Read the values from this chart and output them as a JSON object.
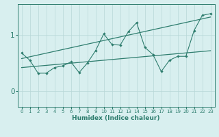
{
  "xlabel": "Humidex (Indice chaleur)",
  "x": [
    0,
    1,
    2,
    3,
    4,
    5,
    6,
    7,
    8,
    9,
    10,
    11,
    12,
    13,
    14,
    15,
    16,
    17,
    18,
    19,
    20,
    21,
    22,
    23
  ],
  "scatter_y": [
    0.68,
    0.55,
    0.32,
    0.32,
    0.42,
    0.45,
    0.52,
    0.33,
    0.5,
    0.72,
    1.02,
    0.83,
    0.82,
    1.06,
    1.22,
    0.78,
    0.65,
    0.35,
    0.55,
    0.62,
    0.62,
    1.08,
    1.35,
    1.38
  ],
  "trend1_x": [
    0,
    23
  ],
  "trend1_y": [
    0.42,
    0.72
  ],
  "trend2_x": [
    0,
    23
  ],
  "trend2_y": [
    0.58,
    1.32
  ],
  "ylim": [
    -0.28,
    1.55
  ],
  "xlim": [
    -0.5,
    23.5
  ],
  "yticks": [
    0,
    1
  ],
  "xticks": [
    0,
    1,
    2,
    3,
    4,
    5,
    6,
    7,
    8,
    9,
    10,
    11,
    12,
    13,
    14,
    15,
    16,
    17,
    18,
    19,
    20,
    21,
    22,
    23
  ],
  "data_color": "#2e7d6e",
  "bg_color": "#d8efef",
  "grid_color": "#b8d8d8",
  "axis_color": "#2e7d6e",
  "tick_fontsize": 5.0,
  "xlabel_fontsize": 6.5
}
